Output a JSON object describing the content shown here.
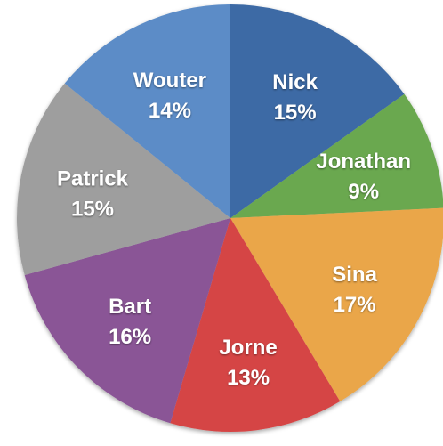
{
  "chart_data": {
    "type": "pie",
    "title": "",
    "start": "top",
    "direction": "clockwise",
    "slices": [
      {
        "label": "Nick",
        "value": 15,
        "percent_label": "15%",
        "color": "#3d6aa5"
      },
      {
        "label": "Jonathan",
        "value": 9,
        "percent_label": "9%",
        "color": "#6aa84f"
      },
      {
        "label": "Sina",
        "value": 17,
        "percent_label": "17%",
        "color": "#eaa64a"
      },
      {
        "label": "Jorne",
        "value": 13,
        "percent_label": "13%",
        "color": "#d54545"
      },
      {
        "label": "Bart",
        "value": 16,
        "percent_label": "16%",
        "color": "#8a5496"
      },
      {
        "label": "Patrick",
        "value": 15,
        "percent_label": "15%",
        "color": "#9e9e9e"
      },
      {
        "label": "Wouter",
        "value": 14,
        "percent_label": "14%",
        "color": "#5b8cc7"
      }
    ]
  }
}
